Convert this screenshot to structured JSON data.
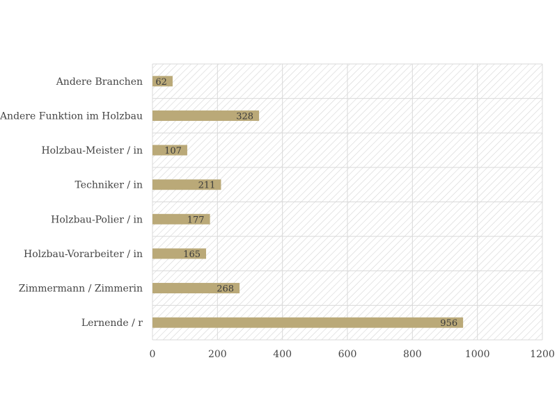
{
  "chart_data": {
    "type": "bar",
    "orientation": "horizontal",
    "categories": [
      "Andere Branchen",
      "Andere Funktion im Holzbau",
      "Holzbau-Meister / in",
      "Techniker / in",
      "Holzbau-Polier / in",
      "Holzbau-Vorarbeiter / in",
      "Zimmermann / Zimmerin",
      "Lernende / r"
    ],
    "values": [
      62,
      328,
      107,
      211,
      177,
      165,
      268,
      956
    ],
    "data_labels": [
      "62",
      "328",
      "107",
      "211",
      "177",
      "165",
      "268",
      "956"
    ],
    "x_ticks": [
      0,
      200,
      400,
      600,
      800,
      1000,
      1200
    ],
    "x_tick_labels": [
      "0",
      "200",
      "400",
      "600",
      "800",
      "1000",
      "1200"
    ],
    "xlim": [
      0,
      1200
    ],
    "title": "",
    "xlabel": "",
    "ylabel": "",
    "grid": true,
    "legend": "none",
    "colors": {
      "bar": "#baa978",
      "grid": "#d9d9d9",
      "hatch": "#d4d4d4",
      "text": "#444444"
    }
  }
}
